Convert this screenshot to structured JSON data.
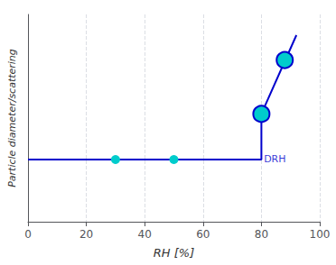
{
  "chart_data": {
    "type": "line",
    "xlabel": "RH [%]",
    "ylabel": "Particle diameter/scattering",
    "xlim": [
      0,
      100
    ],
    "xticks": [
      0,
      20,
      40,
      60,
      80,
      100
    ],
    "ylim": [
      0,
      1
    ],
    "yticks": [],
    "grid": "x",
    "tick_labels": "x",
    "series": [
      {
        "type": "line",
        "color": "#0000CC",
        "x": [
          0,
          80,
          80,
          92
        ],
        "values": [
          0.3,
          0.3,
          0.52,
          0.9
        ]
      },
      {
        "type": "scatter",
        "color": "#00CCCC",
        "x": [
          30,
          50
        ],
        "values": [
          0.3,
          0.3
        ]
      },
      {
        "type": "scatter",
        "color": "#00CCCC",
        "x": [
          80,
          88
        ],
        "values": [
          0.52,
          0.78
        ]
      }
    ],
    "annotations": [
      {
        "text": "DRH",
        "x": 81,
        "y": 0.3
      }
    ]
  }
}
